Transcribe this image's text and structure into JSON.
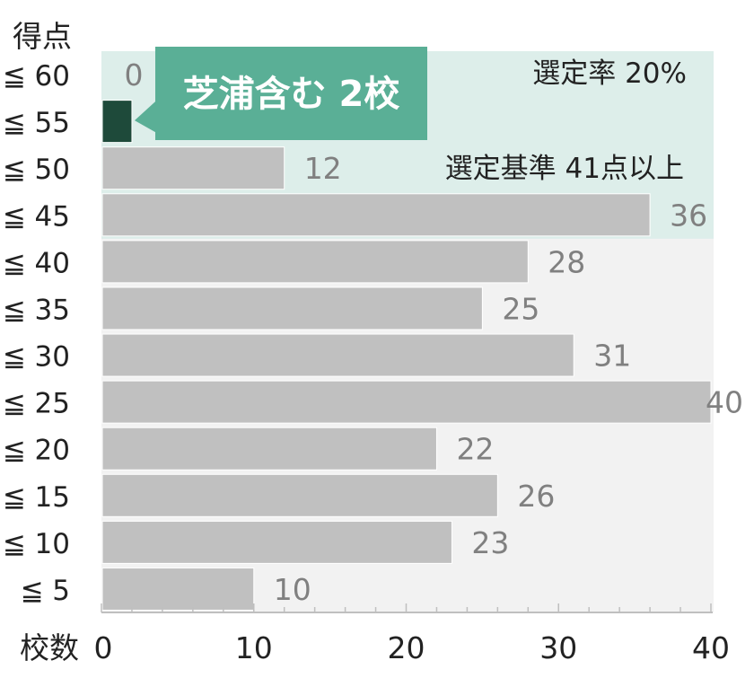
{
  "chart_data": {
    "type": "bar",
    "orientation": "horizontal",
    "ylabel": "得点",
    "xlabel": "校数",
    "categories": [
      "≦ 60",
      "≦ 55",
      "≦ 50",
      "≦ 45",
      "≦ 40",
      "≦ 35",
      "≦ 30",
      "≦ 25",
      "≦ 20",
      "≦ 15",
      "≦ 10",
      "≦ 5"
    ],
    "values": [
      0,
      2,
      12,
      36,
      28,
      25,
      31,
      40,
      22,
      26,
      23,
      10
    ],
    "value_labels": [
      "0",
      "",
      "12",
      "36",
      "28",
      "25",
      "31",
      "40",
      "22",
      "26",
      "23",
      "10"
    ],
    "highlight_index": 1,
    "xlim": [
      0,
      40
    ],
    "xticks": [
      0,
      10,
      20,
      30,
      40
    ],
    "selection_band": {
      "categories": [
        "≦ 60",
        "≦ 55",
        "≦ 50",
        "≦ 45"
      ],
      "rate_label": "選定率 20%",
      "criteria_label": "選定基準 41点以上"
    },
    "callout": "芝浦含む 2校",
    "colors": {
      "bar": "#c0c0c0",
      "highlight_bar": "#1e4a3a",
      "callout_fill": "#5aaf96",
      "band_fill": "#ddeeea",
      "plot_bg": "#f2f2f2",
      "value_label": "#808080",
      "text": "#222222"
    }
  }
}
